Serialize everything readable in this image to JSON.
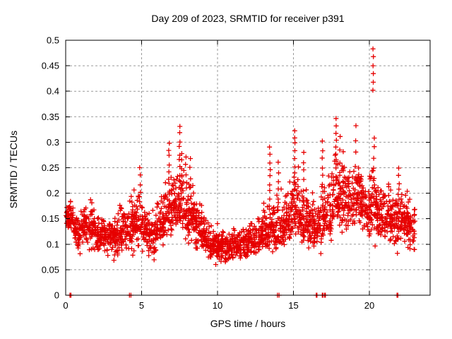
{
  "chart_data": {
    "type": "scatter",
    "title": "Day 209 of 2023, SRMTID for receiver p391",
    "xlabel": "GPS time / hours",
    "ylabel": "SRMTID / TECUs",
    "xlim": [
      0,
      24
    ],
    "ylim": [
      0,
      0.5
    ],
    "xticks": [
      [
        0,
        "0"
      ],
      [
        5,
        "5"
      ],
      [
        10,
        "10"
      ],
      [
        15,
        "15"
      ],
      [
        20,
        "20"
      ]
    ],
    "yticks": [
      [
        0,
        "0"
      ],
      [
        0.05,
        "0.05"
      ],
      [
        0.1,
        "0.1"
      ],
      [
        0.15,
        "0.15"
      ],
      [
        0.2,
        "0.2"
      ],
      [
        0.25,
        "0.25"
      ],
      [
        0.3,
        "0.3"
      ],
      [
        0.35,
        "0.35"
      ],
      [
        0.4,
        "0.4"
      ],
      [
        0.45,
        "0.45"
      ],
      [
        0.5,
        "0.5"
      ]
    ],
    "grid": {
      "show": true,
      "style": "dashed",
      "color": "#9a9a9a"
    },
    "legend": "none",
    "marker": {
      "glyph": "plus",
      "color": "#e60000",
      "size": 7
    },
    "series_note": "single red series of ~2500 30-second SRMTID samples, 0 to 23 GPS hours; dense band 0.08-0.22 TECUs, midday dip ~0.09 near 10-12 h, peaks ~0.33 near 7.5, 15.1 and 17.8 h, isolated spike to 0.485 at 20.3 h",
    "bins_format": "[hour_start, hour_end, y_min, y_max, y_mode] TECUs envelope per half hour",
    "points_per_bin": 52,
    "density_bins": [
      [
        0.0,
        0.5,
        0.11,
        0.2,
        0.15
      ],
      [
        0.5,
        1.0,
        0.06,
        0.18,
        0.12
      ],
      [
        1.0,
        1.5,
        0.08,
        0.19,
        0.135
      ],
      [
        1.5,
        2.0,
        0.07,
        0.21,
        0.13
      ],
      [
        2.0,
        2.5,
        0.07,
        0.18,
        0.12
      ],
      [
        2.5,
        3.0,
        0.06,
        0.17,
        0.12
      ],
      [
        3.0,
        3.5,
        0.04,
        0.18,
        0.12
      ],
      [
        3.5,
        4.0,
        0.06,
        0.2,
        0.13
      ],
      [
        4.0,
        4.5,
        0.05,
        0.21,
        0.13
      ],
      [
        4.5,
        5.0,
        0.07,
        0.25,
        0.14
      ],
      [
        5.0,
        5.5,
        0.05,
        0.22,
        0.13
      ],
      [
        5.5,
        6.0,
        0.04,
        0.2,
        0.12
      ],
      [
        6.0,
        6.5,
        0.07,
        0.24,
        0.14
      ],
      [
        6.5,
        7.0,
        0.08,
        0.29,
        0.16
      ],
      [
        7.0,
        7.5,
        0.09,
        0.28,
        0.17
      ],
      [
        7.5,
        8.0,
        0.08,
        0.32,
        0.17
      ],
      [
        8.0,
        8.5,
        0.07,
        0.26,
        0.15
      ],
      [
        8.5,
        9.0,
        0.06,
        0.22,
        0.13
      ],
      [
        9.0,
        9.5,
        0.06,
        0.17,
        0.11
      ],
      [
        9.5,
        10.0,
        0.05,
        0.15,
        0.1
      ],
      [
        10.0,
        10.5,
        0.05,
        0.14,
        0.095
      ],
      [
        10.5,
        11.0,
        0.04,
        0.14,
        0.09
      ],
      [
        11.0,
        11.5,
        0.05,
        0.15,
        0.1
      ],
      [
        11.5,
        12.0,
        0.05,
        0.16,
        0.1
      ],
      [
        12.0,
        12.5,
        0.06,
        0.17,
        0.11
      ],
      [
        12.5,
        13.0,
        0.06,
        0.18,
        0.115
      ],
      [
        13.0,
        13.5,
        0.07,
        0.22,
        0.12
      ],
      [
        13.5,
        14.0,
        0.06,
        0.24,
        0.13
      ],
      [
        14.0,
        14.5,
        0.07,
        0.24,
        0.13
      ],
      [
        14.5,
        15.0,
        0.08,
        0.26,
        0.15
      ],
      [
        15.0,
        15.5,
        0.08,
        0.3,
        0.16
      ],
      [
        15.5,
        16.0,
        0.07,
        0.27,
        0.15
      ],
      [
        16.0,
        16.5,
        0.06,
        0.22,
        0.13
      ],
      [
        16.5,
        17.0,
        0.06,
        0.25,
        0.14
      ],
      [
        17.0,
        17.5,
        0.08,
        0.28,
        0.16
      ],
      [
        17.5,
        18.0,
        0.1,
        0.33,
        0.19
      ],
      [
        18.0,
        18.5,
        0.1,
        0.32,
        0.19
      ],
      [
        18.5,
        19.0,
        0.1,
        0.3,
        0.18
      ],
      [
        19.0,
        19.5,
        0.09,
        0.31,
        0.19
      ],
      [
        19.5,
        20.0,
        0.08,
        0.26,
        0.17
      ],
      [
        20.0,
        20.5,
        0.05,
        0.3,
        0.17
      ],
      [
        20.5,
        21.0,
        0.08,
        0.26,
        0.15
      ],
      [
        21.0,
        21.5,
        0.08,
        0.25,
        0.15
      ],
      [
        21.5,
        22.0,
        0.06,
        0.25,
        0.14
      ],
      [
        22.0,
        22.5,
        0.08,
        0.25,
        0.15
      ],
      [
        22.5,
        23.0,
        0.05,
        0.22,
        0.14
      ]
    ],
    "spikes_format": "[hour, y_from, y_to, n_points] vertical streaks",
    "spikes": [
      [
        4.9,
        0.2,
        0.25,
        4
      ],
      [
        6.8,
        0.23,
        0.3,
        6
      ],
      [
        7.5,
        0.21,
        0.33,
        10
      ],
      [
        7.65,
        0.17,
        0.28,
        8
      ],
      [
        8.2,
        0.17,
        0.27,
        6
      ],
      [
        13.45,
        0.19,
        0.29,
        8
      ],
      [
        14.0,
        0.19,
        0.26,
        5
      ],
      [
        15.1,
        0.21,
        0.325,
        9
      ],
      [
        15.65,
        0.17,
        0.28,
        7
      ],
      [
        16.9,
        0.22,
        0.3,
        6
      ],
      [
        17.8,
        0.22,
        0.345,
        10
      ],
      [
        18.05,
        0.19,
        0.31,
        6
      ],
      [
        19.1,
        0.23,
        0.33,
        5
      ],
      [
        20.25,
        0.4,
        0.485,
        6
      ],
      [
        20.3,
        0.19,
        0.31,
        7
      ],
      [
        21.95,
        0.19,
        0.25,
        5
      ]
    ],
    "zero_marker_hours": [
      0.28,
      0.3,
      0.32,
      0.35,
      4.2,
      4.3,
      13.95,
      14.05,
      16.5,
      16.55,
      16.9,
      16.95,
      17.05,
      17.1,
      21.82,
      21.88
    ]
  }
}
